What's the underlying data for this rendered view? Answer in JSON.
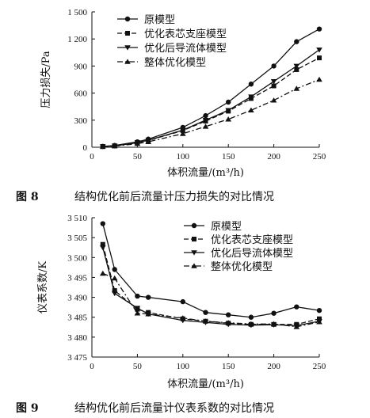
{
  "chart_data": [
    {
      "type": "line",
      "figure_label": "图 8",
      "caption": "结构优化前后流量计压力损失的对比情况",
      "xlabel": "体积流量/(m³/h)",
      "ylabel": "压力损失/Pa",
      "xlim": [
        0,
        250
      ],
      "ylim": [
        0,
        1500
      ],
      "xticks": [
        0,
        50,
        100,
        150,
        200,
        250
      ],
      "xtick_labels": [
        "0",
        "50",
        "100",
        "150",
        "200",
        "250"
      ],
      "yticks": [
        0,
        300,
        600,
        900,
        1200,
        1500
      ],
      "ytick_labels": [
        "0",
        "300",
        "600",
        "900",
        "1 200",
        "1 500"
      ],
      "legend_position": "top-left",
      "x": [
        12,
        25,
        50,
        62,
        100,
        125,
        150,
        175,
        200,
        225,
        250
      ],
      "series": [
        {
          "name": "原模型",
          "marker": "circle",
          "dash": "solid",
          "values": [
            10,
            20,
            60,
            90,
            220,
            350,
            500,
            700,
            900,
            1170,
            1310
          ]
        },
        {
          "name": "优化表芯支座模型",
          "marker": "square",
          "dash": "dashed",
          "values": [
            8,
            15,
            50,
            75,
            185,
            290,
            400,
            540,
            680,
            860,
            990
          ]
        },
        {
          "name": "优化后导流体模型",
          "marker": "triangle-down",
          "dash": "solid",
          "values": [
            8,
            15,
            52,
            78,
            190,
            300,
            410,
            560,
            730,
            900,
            1080
          ]
        },
        {
          "name": "整体优化模型",
          "marker": "triangle-up",
          "dash": "dashdot",
          "values": [
            6,
            12,
            40,
            60,
            150,
            230,
            310,
            410,
            520,
            650,
            750
          ]
        }
      ]
    },
    {
      "type": "line",
      "figure_label": "图 9",
      "caption": "结构优化前后流量计仪表系数的对比情况",
      "xlabel": "体积流量/(m³/h)",
      "ylabel": "仪表系数/K",
      "xlim": [
        0,
        250
      ],
      "ylim": [
        3475,
        3510
      ],
      "xticks": [
        0,
        50,
        100,
        150,
        200,
        250
      ],
      "xtick_labels": [
        "0",
        "50",
        "100",
        "150",
        "200",
        "250"
      ],
      "yticks": [
        3475,
        3480,
        3485,
        3490,
        3495,
        3500,
        3505,
        3510
      ],
      "ytick_labels": [
        "3 475",
        "3 480",
        "3 485",
        "3 490",
        "3 495",
        "3 500",
        "3 505",
        "3 510"
      ],
      "legend_position": "top-right",
      "x": [
        12,
        25,
        50,
        62,
        100,
        125,
        150,
        175,
        200,
        225,
        250
      ],
      "series": [
        {
          "name": "原模型",
          "marker": "circle",
          "dash": "solid",
          "values": [
            3508.5,
            3497.0,
            3490.3,
            3490.0,
            3488.9,
            3486.2,
            3485.6,
            3485.0,
            3486.0,
            3487.6,
            3486.7
          ]
        },
        {
          "name": "优化表芯支座模型",
          "marker": "square",
          "dash": "dashed",
          "values": [
            3503.3,
            3491.7,
            3487.0,
            3486.2,
            3484.6,
            3484.0,
            3483.5,
            3483.2,
            3483.2,
            3483.2,
            3484.6
          ]
        },
        {
          "name": "优化后导流体模型",
          "marker": "triangle-down",
          "dash": "solid",
          "values": [
            3502.5,
            3491.0,
            3487.3,
            3485.8,
            3484.2,
            3483.7,
            3483.2,
            3483.0,
            3483.1,
            3482.9,
            3484.0
          ]
        },
        {
          "name": "整体优化模型",
          "marker": "triangle-up",
          "dash": "dashdot",
          "values": [
            3496.0,
            3494.8,
            3486.0,
            3485.8,
            3484.8,
            3484.0,
            3483.6,
            3483.3,
            3483.3,
            3482.6,
            3483.8
          ]
        }
      ]
    }
  ]
}
